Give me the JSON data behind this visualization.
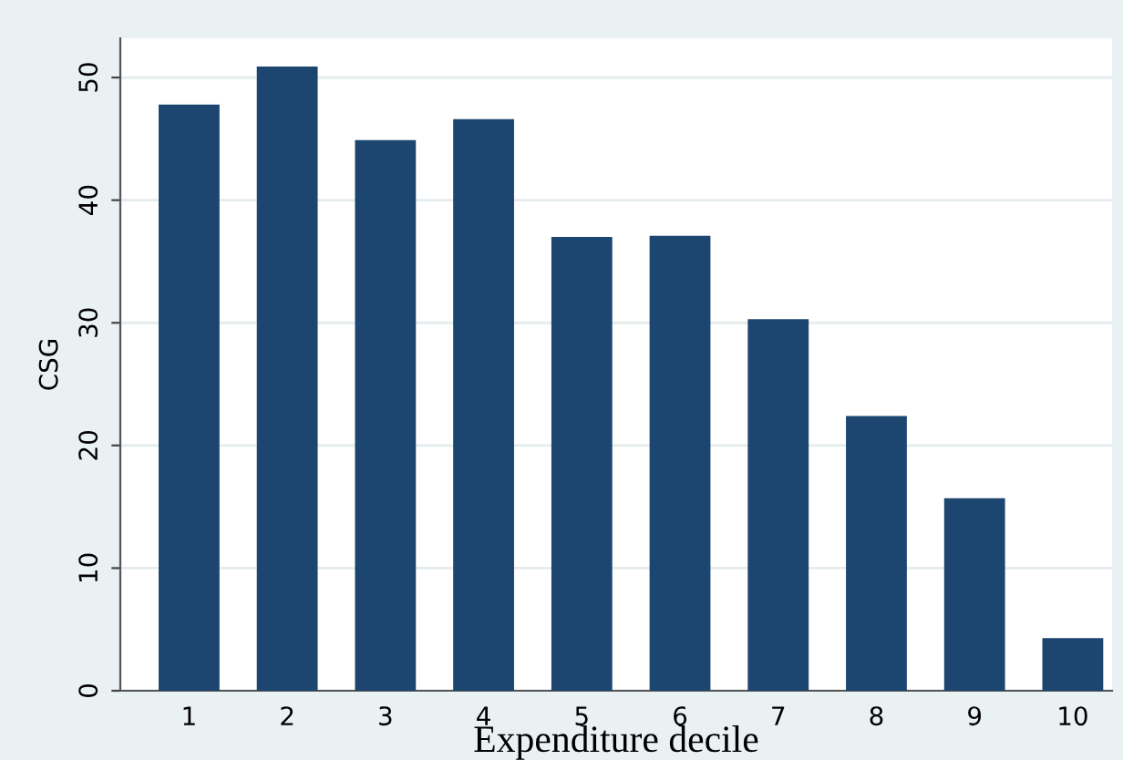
{
  "chart_data": {
    "type": "bar",
    "xlabel": "Expenditure decile",
    "ylabel": "CSG",
    "categories": [
      "1",
      "2",
      "3",
      "4",
      "5",
      "6",
      "7",
      "8",
      "9",
      "10"
    ],
    "values": [
      47.8,
      50.9,
      44.9,
      46.6,
      37.0,
      37.1,
      30.3,
      22.4,
      15.7,
      4.3
    ],
    "color": "#1c466f",
    "ylim": [
      0,
      53.2
    ],
    "yticks": [
      0,
      10,
      20,
      30,
      40,
      50
    ],
    "grid": "y"
  }
}
